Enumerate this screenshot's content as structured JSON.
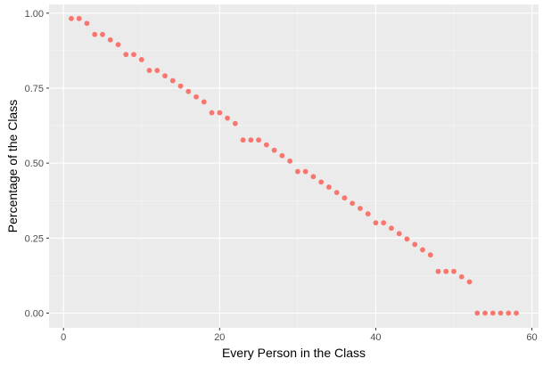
{
  "chart_data": {
    "type": "scatter",
    "title": "",
    "xlabel": "Every Person in the Class",
    "ylabel": "Percentage of the Class",
    "xlim": [
      -1.85,
      60.85
    ],
    "ylim": [
      -0.049,
      1.029
    ],
    "x_ticks": [
      0,
      20,
      40,
      60
    ],
    "x_tick_labels": [
      "0",
      "20",
      "40",
      "60"
    ],
    "y_ticks": [
      0,
      0.25,
      0.5,
      0.75,
      1
    ],
    "y_tick_labels": [
      "0.00",
      "0.25",
      "0.50",
      "0.75",
      "1.00"
    ],
    "grid": true,
    "legend": "none",
    "point_color": "#F8766D",
    "panel_color": "#EBEBEB",
    "grid_color": "#FFFFFF",
    "x": [
      1,
      2,
      3,
      4,
      5,
      6,
      7,
      8,
      9,
      10,
      11,
      12,
      13,
      14,
      15,
      16,
      17,
      18,
      19,
      20,
      21,
      22,
      23,
      24,
      25,
      26,
      27,
      28,
      29,
      30,
      31,
      32,
      33,
      34,
      35,
      36,
      37,
      38,
      39,
      40,
      41,
      42,
      43,
      44,
      45,
      46,
      47,
      48,
      49,
      50,
      51,
      52,
      53,
      54,
      55,
      56,
      57,
      58
    ],
    "y": [
      0.982,
      0.982,
      0.966,
      0.929,
      0.929,
      0.911,
      0.895,
      0.862,
      0.862,
      0.845,
      0.809,
      0.809,
      0.791,
      0.775,
      0.757,
      0.739,
      0.721,
      0.704,
      0.668,
      0.668,
      0.65,
      0.632,
      0.577,
      0.577,
      0.577,
      0.561,
      0.543,
      0.525,
      0.507,
      0.472,
      0.472,
      0.455,
      0.437,
      0.42,
      0.402,
      0.384,
      0.366,
      0.349,
      0.331,
      0.301,
      0.301,
      0.283,
      0.265,
      0.247,
      0.229,
      0.211,
      0.194,
      0.139,
      0.139,
      0.139,
      0.121,
      0.104,
      0.0,
      0.0,
      0.0,
      0.0,
      0.0,
      0.0
    ]
  }
}
